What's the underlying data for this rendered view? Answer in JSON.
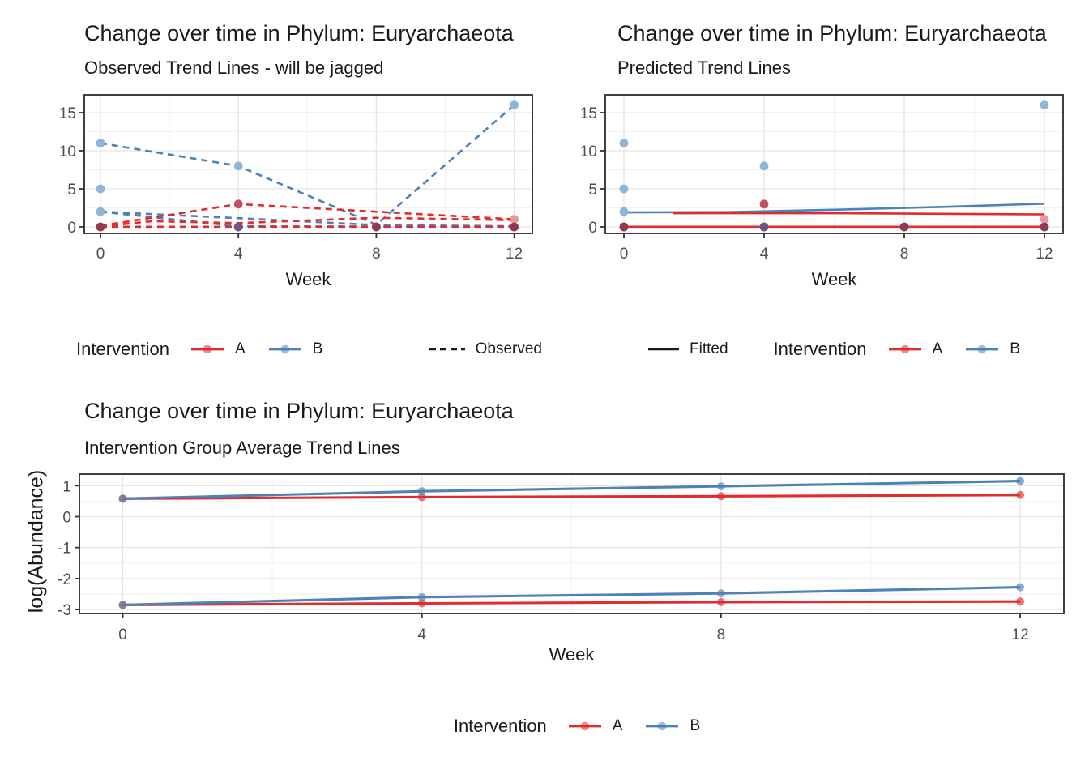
{
  "palette": {
    "red": "#E02C2C",
    "blue": "#4D82B8",
    "grid_major": "#E5E5E5",
    "grid_minor": "#F2F2F2",
    "panel_border": "#2B2B2B",
    "tick_mark": "#333333",
    "tick_text": "#4D4D4D",
    "point_blue": "#8FB6D8",
    "point_pink": "#E8959D",
    "point_midred": "#BE5165",
    "point_purple": "#6F5385",
    "point_maroon": "#8E3A50"
  },
  "chart_data": [
    {
      "id": "observed-panel",
      "type": "line",
      "title": "Change over time in Phylum: Euryarchaeota",
      "subtitle": "Observed Trend Lines - will be jagged",
      "xlabel": "Week",
      "ylabel": "",
      "x_ticks": [
        0,
        4,
        8,
        12
      ],
      "y_ticks": [
        0,
        5,
        10,
        15
      ],
      "xlim": [
        -0.5,
        12.5
      ],
      "ylim": [
        -0.85,
        17.35
      ],
      "grid": true,
      "line_style": "dashed",
      "line_width": 2.6,
      "series": [
        {
          "name": "B-subject-1",
          "group": "B",
          "points": [
            [
              0,
              11
            ],
            [
              4,
              8
            ],
            [
              8,
              0.3
            ],
            [
              12,
              16
            ]
          ]
        },
        {
          "name": "B-subject-2",
          "group": "B",
          "points": [
            [
              0,
              2
            ],
            [
              4,
              1.15
            ],
            [
              8,
              0.25
            ],
            [
              12,
              0.1
            ]
          ]
        },
        {
          "name": "B-subject-3",
          "group": "B",
          "points": [
            [
              0,
              2
            ],
            [
              4,
              0.08
            ],
            [
              8,
              0.05
            ],
            [
              12,
              0.05
            ]
          ]
        },
        {
          "name": "A-subject-1",
          "group": "A",
          "points": [
            [
              0,
              0.15
            ],
            [
              4,
              3
            ],
            [
              12,
              1
            ]
          ]
        },
        {
          "name": "A-subject-2",
          "group": "A",
          "points": [
            [
              0,
              0.05
            ],
            [
              1.5,
              0.75
            ],
            [
              4,
              0.5
            ],
            [
              8,
              1.2
            ],
            [
              12,
              0.88
            ]
          ]
        },
        {
          "name": "A-subject-3",
          "group": "A",
          "points": [
            [
              0,
              0.02
            ],
            [
              12,
              0.02
            ]
          ]
        }
      ],
      "markers": [
        {
          "x": 0,
          "y": 11,
          "fill": "point_blue"
        },
        {
          "x": 0,
          "y": 5,
          "fill": "point_blue"
        },
        {
          "x": 0,
          "y": 2,
          "fill": "point_blue"
        },
        {
          "x": 0,
          "y": 0,
          "fill": "point_maroon"
        },
        {
          "x": 4,
          "y": 8,
          "fill": "point_blue"
        },
        {
          "x": 4,
          "y": 3,
          "fill": "point_midred"
        },
        {
          "x": 4,
          "y": 0,
          "fill": "point_purple"
        },
        {
          "x": 8,
          "y": 0,
          "fill": "point_maroon"
        },
        {
          "x": 12,
          "y": 16,
          "fill": "point_blue"
        },
        {
          "x": 12,
          "y": 1,
          "fill": "point_pink"
        },
        {
          "x": 12,
          "y": 0,
          "fill": "point_maroon"
        }
      ],
      "legend": {
        "title": "Intervention",
        "items": [
          {
            "label": "A",
            "color": "red"
          },
          {
            "label": "B",
            "color": "blue"
          }
        ],
        "linetype": {
          "label": "Observed",
          "style": "dashed"
        }
      }
    },
    {
      "id": "predicted-panel",
      "type": "line",
      "title": "Change over time in Phylum: Euryarchaeota",
      "subtitle": "Predicted Trend Lines",
      "xlabel": "Week",
      "ylabel": "",
      "x_ticks": [
        0,
        4,
        8,
        12
      ],
      "y_ticks": [
        0,
        5,
        10,
        15
      ],
      "xlim": [
        -0.55,
        12.5
      ],
      "ylim": [
        -0.85,
        17.35
      ],
      "grid": true,
      "line_style": "solid",
      "line_width": 2.6,
      "series": [
        {
          "name": "B-fitted",
          "group": "B",
          "points": [
            [
              0,
              1.9
            ],
            [
              3,
              1.95
            ],
            [
              6,
              2.25
            ],
            [
              9,
              2.62
            ],
            [
              12,
              3.05
            ]
          ]
        },
        {
          "name": "A-fitted-upper",
          "group": "A",
          "points": [
            [
              1.4,
              1.8
            ],
            [
              6,
              1.8
            ],
            [
              12,
              1.65
            ]
          ]
        },
        {
          "name": "A-fitted-zero",
          "group": "A",
          "points": [
            [
              0,
              0.02
            ],
            [
              12,
              0.02
            ]
          ]
        }
      ],
      "markers": [
        {
          "x": 0,
          "y": 11,
          "fill": "point_blue"
        },
        {
          "x": 0,
          "y": 5,
          "fill": "point_blue"
        },
        {
          "x": 0,
          "y": 2,
          "fill": "point_blue"
        },
        {
          "x": 0,
          "y": 0,
          "fill": "point_maroon"
        },
        {
          "x": 4,
          "y": 8,
          "fill": "point_blue"
        },
        {
          "x": 4,
          "y": 3,
          "fill": "point_midred"
        },
        {
          "x": 4,
          "y": 0,
          "fill": "point_purple"
        },
        {
          "x": 8,
          "y": 0,
          "fill": "point_maroon"
        },
        {
          "x": 12,
          "y": 16,
          "fill": "point_blue"
        },
        {
          "x": 12,
          "y": 1,
          "fill": "point_pink"
        },
        {
          "x": 12,
          "y": 0,
          "fill": "point_maroon"
        }
      ],
      "legend": {
        "linetype": {
          "label": "Fitted",
          "style": "solid"
        },
        "title": "Intervention",
        "items": [
          {
            "label": "A",
            "color": "red"
          },
          {
            "label": "B",
            "color": "blue"
          }
        ]
      }
    },
    {
      "id": "group-average-panel",
      "type": "line",
      "title": "Change over time in Phylum: Euryarchaeota",
      "subtitle": "Intervention Group Average Trend Lines",
      "xlabel": "Week",
      "ylabel": "log(Abundance)",
      "x_ticks": [
        0,
        4,
        8,
        12
      ],
      "y_ticks": [
        1,
        0,
        -1,
        -2,
        -3
      ],
      "xlim": [
        -0.58,
        12.58
      ],
      "ylim": [
        -3.13,
        1.37
      ],
      "grid": true,
      "line_style": "solid",
      "line_width": 3.1,
      "auto_markers": true,
      "series": [
        {
          "name": "A-upper-average",
          "group": "A",
          "points": [
            [
              0,
              0.58
            ],
            [
              4,
              0.63
            ],
            [
              8,
              0.66
            ],
            [
              12,
              0.7
            ]
          ]
        },
        {
          "name": "A-lower-average",
          "group": "A",
          "points": [
            [
              0,
              -2.85
            ],
            [
              4,
              -2.8
            ],
            [
              8,
              -2.76
            ],
            [
              12,
              -2.74
            ]
          ]
        },
        {
          "name": "B-upper-average",
          "group": "B",
          "points": [
            [
              0,
              0.58
            ],
            [
              4,
              0.82
            ],
            [
              8,
              0.98
            ],
            [
              12,
              1.15
            ]
          ]
        },
        {
          "name": "B-lower-average",
          "group": "B",
          "points": [
            [
              0,
              -2.85
            ],
            [
              4,
              -2.6
            ],
            [
              8,
              -2.48
            ],
            [
              12,
              -2.28
            ]
          ]
        }
      ],
      "legend": {
        "title": "Intervention",
        "items": [
          {
            "label": "A",
            "color": "red"
          },
          {
            "label": "B",
            "color": "blue"
          }
        ]
      }
    }
  ]
}
